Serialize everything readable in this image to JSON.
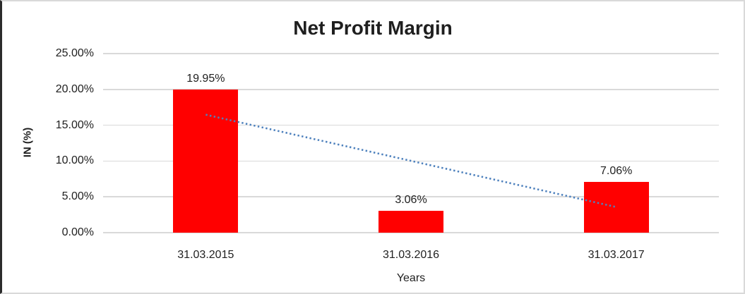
{
  "chart_data": {
    "type": "bar",
    "title": "Net Profit Margin",
    "xlabel": "Years",
    "ylabel": "IN (%)",
    "categories": [
      "31.03.2015",
      "31.03.2016",
      "31.03.2017"
    ],
    "values": [
      19.95,
      3.06,
      7.06
    ],
    "value_labels": [
      "19.95%",
      "3.06%",
      "7.06%"
    ],
    "ylim": [
      0,
      25
    ],
    "ytick_values": [
      0,
      5,
      10,
      15,
      20,
      25
    ],
    "ytick_labels": [
      "0.00%",
      "5.00%",
      "10.00%",
      "15.00%",
      "20.00%",
      "25.00%"
    ],
    "grid": true,
    "legend": "none",
    "bar_color": "#ff0000",
    "gridline_color": "#d9d9d9",
    "text_color": "#1f1f1f",
    "trendline": {
      "type": "linear",
      "style": "dotted",
      "color": "#4e81bd",
      "start_value": 16.47,
      "end_value": 3.58
    }
  }
}
